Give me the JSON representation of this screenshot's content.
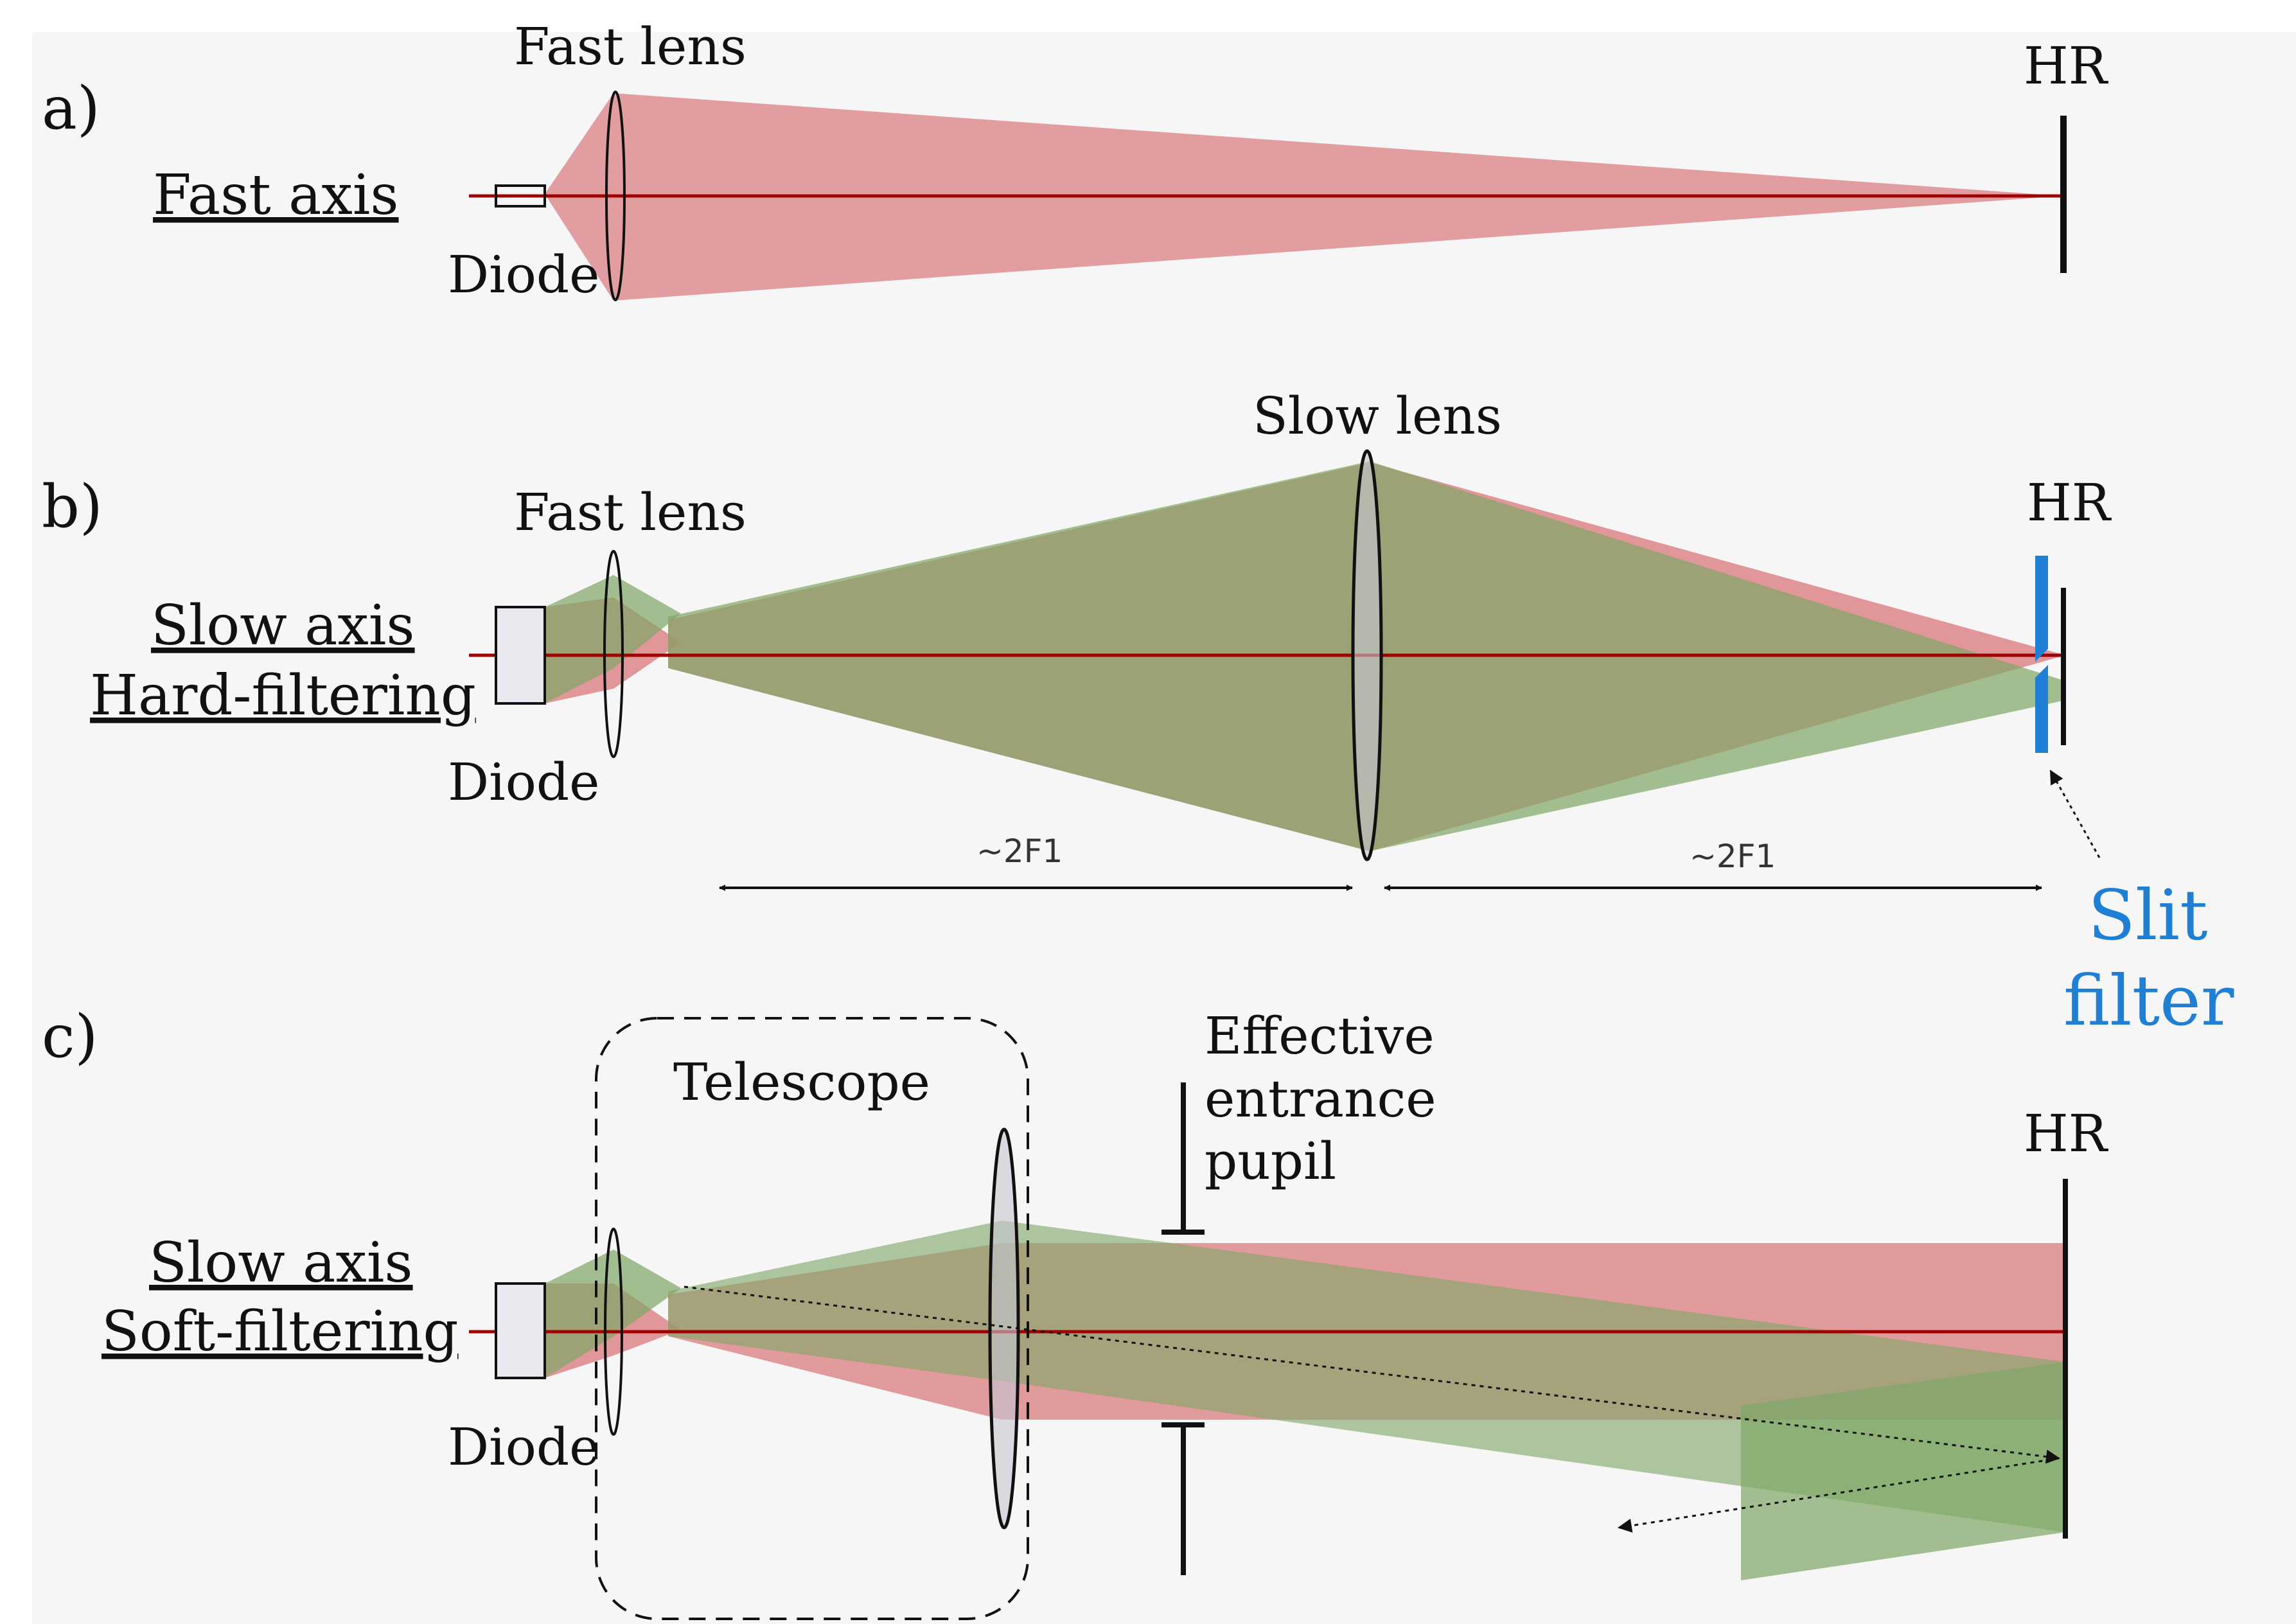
{
  "colors": {
    "red_beam": "#d9777a",
    "green_beam": "#7fa667",
    "overlap": "#9c8b6a",
    "axis": "#a00000",
    "slit": "#1f7fd4",
    "background": "#f6f6f6"
  },
  "panel_a": {
    "tag": "a)",
    "axis_label": "Fast axis",
    "lens_label": "Fast lens",
    "diode_label": "Diode",
    "mirror_label": "HR"
  },
  "panel_b": {
    "tag": "b)",
    "axis_label_line1": "Slow axis",
    "axis_label_line2": "Hard-filtering",
    "fast_lens_label": "Fast lens",
    "slow_lens_label": "Slow lens",
    "diode_label": "Diode",
    "mirror_label": "HR",
    "distance_left": "~2F1",
    "distance_right": "~2F1",
    "slit_label_line1": "Slit",
    "slit_label_line2": "filter"
  },
  "panel_c": {
    "tag": "c)",
    "axis_label_line1": "Slow axis",
    "axis_label_line2": "Soft-filtering",
    "telescope_label": "Telescope",
    "pupil_label_line1": "Effective",
    "pupil_label_line2": "entrance",
    "pupil_label_line3": "pupil",
    "diode_label": "Diode",
    "mirror_label": "HR"
  }
}
